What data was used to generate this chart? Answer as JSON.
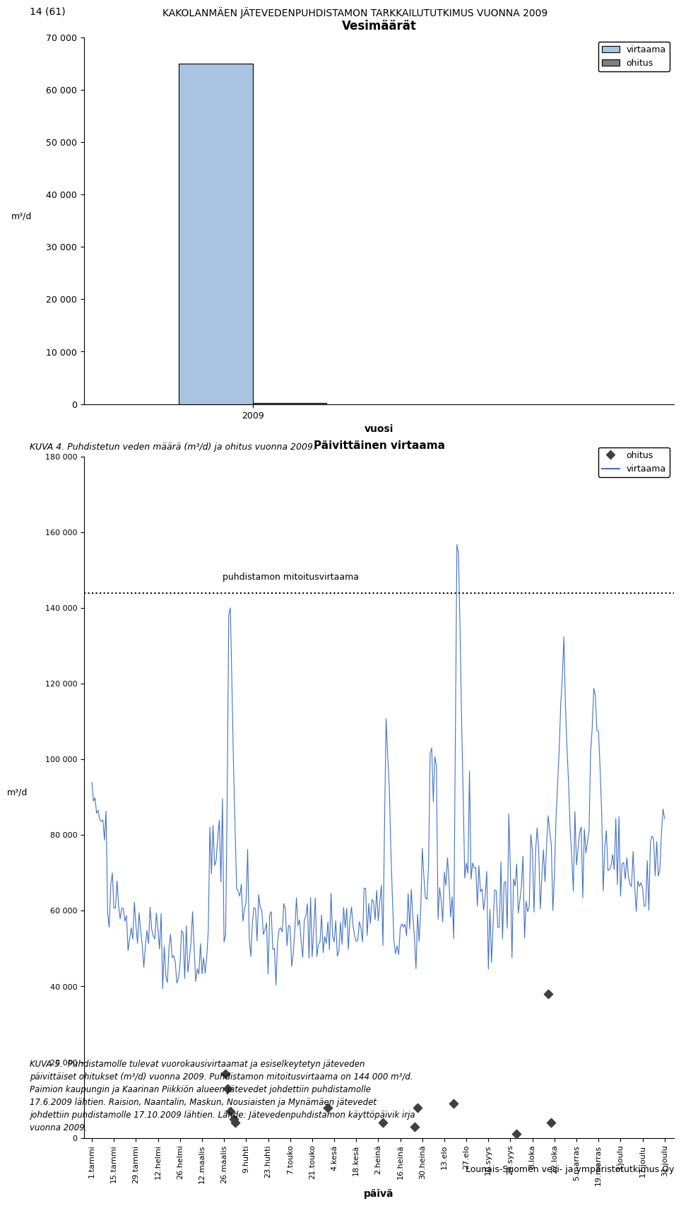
{
  "page_header_left": "14 (61)",
  "page_header_right": "KAKOLANMÄEN JÄTEVEDENPUHDISTAMON TARKKAILUTUTKIMUS VUONNA 2009",
  "chart1_title": "Vesimäärät",
  "chart1_xlabel": "vuosi",
  "chart1_ylabel": "m³/d",
  "chart1_categories": [
    "2009"
  ],
  "chart1_virtaama": [
    65000
  ],
  "chart1_ohitus": [
    200
  ],
  "chart1_bar_width": 0.35,
  "chart1_virtaama_color": "#a8c4e0",
  "chart1_ohitus_color": "#808080",
  "chart1_ylim": [
    0,
    70000
  ],
  "chart1_yticks": [
    0,
    10000,
    20000,
    30000,
    40000,
    50000,
    60000,
    70000
  ],
  "chart1_ytick_labels": [
    "0",
    "10 000",
    "20 000",
    "30 000",
    "40 000",
    "50 000",
    "60 000",
    "70 000"
  ],
  "caption1": "KUVA 4. Puhdistetun veden määrä (m³/d) ja ohitus vuonna 2009.",
  "chart2_title": "Päivittäinen virtaama",
  "chart2_xlabel": "päivä",
  "chart2_ylabel": "m³/d",
  "chart2_mitoi": 144000,
  "chart2_mitoi_label": "puhdistamon mitoitusvirtaama",
  "chart2_ylim": [
    0,
    180000
  ],
  "chart2_yticks": [
    0,
    20000,
    40000,
    60000,
    80000,
    100000,
    120000,
    140000,
    160000,
    180000
  ],
  "chart2_ytick_labels": [
    "0",
    "20 000",
    "40 000",
    "60 000",
    "80 000",
    "100 000",
    "120 000",
    "140 000",
    "160 000",
    "180 000"
  ],
  "chart2_line_color": "#4472c4",
  "chart2_ohitus_color": "#404040",
  "xtick_labels": [
    "1.tammi",
    "15.tammi",
    "29.tammi",
    "12.helmi",
    "26.helmi",
    "12.maalis",
    "26.maalis",
    "9.huhti",
    "23.huhti",
    "7.touko",
    "21.touko",
    "4.kesä",
    "18.kesä",
    "2.heinä",
    "16.heinä",
    "30.heinä",
    "13.elo",
    "27.elo",
    "10.syys",
    "24.syys",
    "8.loka",
    "22.loka",
    "5.marras",
    "19.marras",
    "3.joulu",
    "17.joulu",
    "31.joulu"
  ],
  "caption2_line1": "KUVA 5.  Puhdistamolle tulevat vuorokausivirtaamat ja esiselkeytetyn jäteveden",
  "caption2_line2": "päivittäiset ohitukset (m³/d) vuonna 2009. Puhdistamon mitoitusvirtaama on 144 000 m³/d.",
  "caption2_line3": "Paimion kaupungin ja Kaarinan Piikkiön alueen jätevedet johdettiin puhdistamolle",
  "caption2_line4": "17.6.2009 lähtien. Raision, Naantalin, Maskun, Nousiaisten ja Mynämäen jätevedet",
  "caption2_line5": "johdettiin puhdistamolle 17.10.2009 lähtien. Lähde: Jätevedenpuhdistamon käyttöpäivik irja",
  "caption2_line6": "vuonna 2009.",
  "footer": "Lounais-Suomen vesi- ja ympäristötutkimus Oy",
  "background_color": "#ffffff"
}
